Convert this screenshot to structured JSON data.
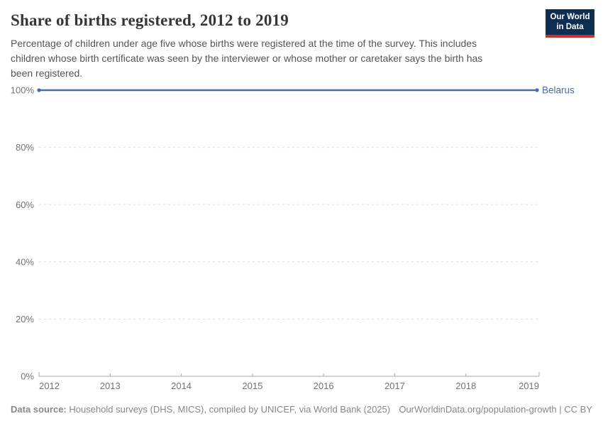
{
  "chart_data": {
    "type": "line",
    "title": "Share of births registered, 2012 to 2019",
    "subtitle": "Percentage of children under age five whose births were registered at the time of the survey. This includes children whose birth certificate was seen by the interviewer or whose mother or caretaker says the birth has been registered.",
    "x": [
      2012,
      2013,
      2014,
      2015,
      2016,
      2017,
      2018,
      2019
    ],
    "series": [
      {
        "name": "Belarus",
        "values": [
          100,
          100,
          100,
          100,
          100,
          100,
          100,
          100
        ],
        "color": "#4C6A9C"
      }
    ],
    "xlim": [
      2012,
      2019
    ],
    "ylim": [
      0,
      100
    ],
    "yticks": [
      0,
      20,
      40,
      60,
      80,
      100
    ],
    "ytick_suffix": "%",
    "grid": "horizontal-dashed",
    "legend_position": "end-of-line-label"
  },
  "logo": {
    "line1": "Our World",
    "line2": "in Data"
  },
  "footer": {
    "datasource_label": "Data source:",
    "datasource_text": " Household surveys (DHS, MICS), compiled by UNICEF, via World Bank (2025)",
    "link_text": "OurWorldinData.org/population-growth | CC BY"
  },
  "colors": {
    "line": "#4C6A9C",
    "entity_label": "#4C6A9C",
    "grid": "#dcdcdc",
    "axis": "#a8a8a8",
    "tick_label": "#737373",
    "title": "#363636",
    "subtitle": "#555555",
    "footer": "#878787",
    "logo_bg": "#0d2e51",
    "logo_accent": "#c4342c"
  }
}
